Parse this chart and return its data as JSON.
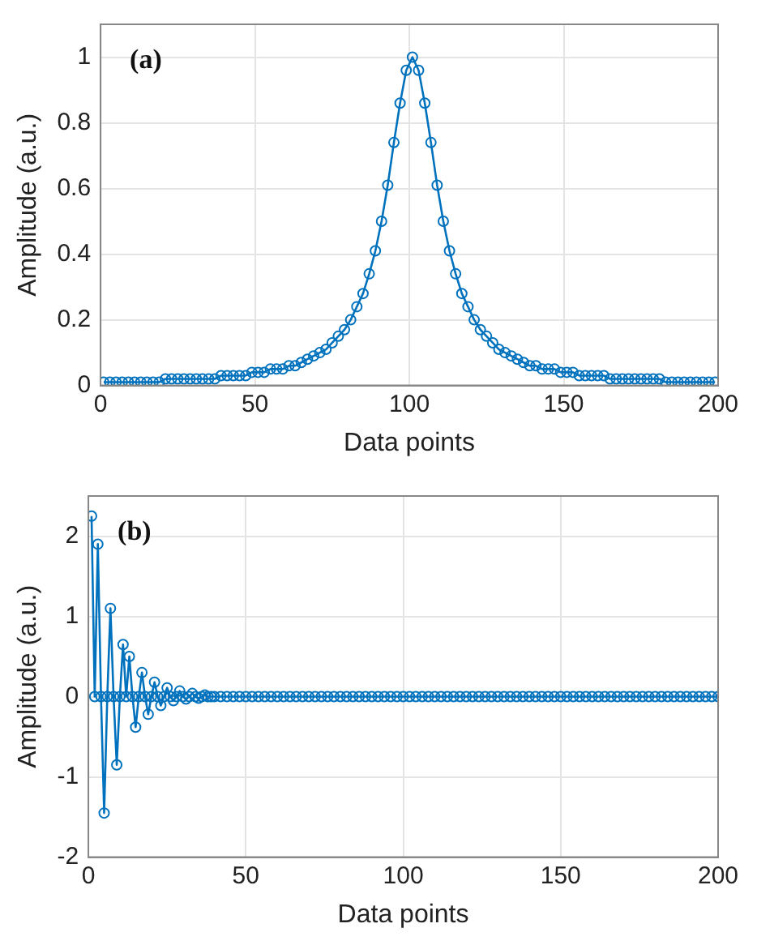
{
  "chart_data": [
    {
      "type": "line",
      "xlabel": "Data points",
      "ylabel": "Amplitude (a.u.)",
      "annotations": [
        "(a)"
      ],
      "xlim": [
        0,
        200
      ],
      "xticks": [
        0,
        50,
        100,
        150,
        200
      ],
      "ylim": [
        0,
        1.1
      ],
      "yticks": [
        0,
        0.2,
        0.4,
        0.6,
        0.8,
        1
      ],
      "grid": true,
      "marker": "circle",
      "line_style": "solid",
      "series": [
        {
          "color": "#0072bd",
          "x": [
            1,
            3,
            5,
            7,
            9,
            11,
            13,
            15,
            17,
            19,
            21,
            23,
            25,
            27,
            29,
            31,
            33,
            35,
            37,
            39,
            41,
            43,
            45,
            47,
            49,
            51,
            53,
            55,
            57,
            59,
            61,
            63,
            65,
            67,
            69,
            71,
            73,
            75,
            77,
            79,
            81,
            83,
            85,
            87,
            89,
            91,
            93,
            95,
            97,
            99,
            101,
            103,
            105,
            107,
            109,
            111,
            113,
            115,
            117,
            119,
            121,
            123,
            125,
            127,
            129,
            131,
            133,
            135,
            137,
            139,
            141,
            143,
            145,
            147,
            149,
            151,
            153,
            155,
            157,
            159,
            161,
            163,
            165,
            167,
            169,
            171,
            173,
            175,
            177,
            179,
            181,
            183,
            185,
            187,
            189,
            191,
            193,
            195,
            197,
            199
          ],
          "values": [
            0.01,
            0.01,
            0.01,
            0.01,
            0.01,
            0.01,
            0.01,
            0.01,
            0.01,
            0.01,
            0.02,
            0.02,
            0.02,
            0.02,
            0.02,
            0.02,
            0.02,
            0.02,
            0.02,
            0.03,
            0.03,
            0.03,
            0.03,
            0.03,
            0.04,
            0.04,
            0.04,
            0.05,
            0.05,
            0.05,
            0.06,
            0.06,
            0.07,
            0.08,
            0.09,
            0.1,
            0.11,
            0.13,
            0.15,
            0.17,
            0.2,
            0.24,
            0.28,
            0.34,
            0.41,
            0.5,
            0.61,
            0.74,
            0.86,
            0.96,
            1,
            0.96,
            0.86,
            0.74,
            0.61,
            0.5,
            0.41,
            0.34,
            0.28,
            0.24,
            0.2,
            0.17,
            0.15,
            0.13,
            0.11,
            0.1,
            0.09,
            0.08,
            0.07,
            0.06,
            0.06,
            0.05,
            0.05,
            0.05,
            0.04,
            0.04,
            0.04,
            0.03,
            0.03,
            0.03,
            0.03,
            0.03,
            0.02,
            0.02,
            0.02,
            0.02,
            0.02,
            0.02,
            0.02,
            0.02,
            0.02,
            0.01,
            0.01,
            0.01,
            0.01,
            0.01,
            0.01,
            0.01,
            0.01,
            0.01
          ]
        }
      ]
    },
    {
      "type": "line",
      "xlabel": "Data points",
      "ylabel": "Amplitude (a.u.)",
      "annotations": [
        "(b)"
      ],
      "xlim": [
        0,
        200
      ],
      "xticks": [
        0,
        50,
        100,
        150,
        200
      ],
      "ylim": [
        -2,
        2.5
      ],
      "yticks": [
        -2,
        -1,
        0,
        1,
        2
      ],
      "grid": true,
      "marker": "circle",
      "line_style": "solid",
      "series": [
        {
          "color": "#0072bd",
          "x": [
            1,
            2,
            3,
            4,
            5,
            6,
            7,
            8,
            9,
            10,
            11,
            12,
            13,
            14,
            15,
            16,
            17,
            18,
            19,
            20,
            21,
            22,
            23,
            24,
            25,
            26,
            27,
            28,
            29,
            30,
            31,
            32,
            33,
            34,
            35,
            36,
            37,
            38,
            39,
            40,
            42,
            44,
            46,
            48,
            50,
            52,
            54,
            56,
            58,
            60,
            62,
            64,
            66,
            68,
            70,
            72,
            74,
            76,
            78,
            80,
            82,
            84,
            86,
            88,
            90,
            92,
            94,
            96,
            98,
            100,
            102,
            104,
            106,
            108,
            110,
            112,
            114,
            116,
            118,
            120,
            122,
            124,
            126,
            128,
            130,
            132,
            134,
            136,
            138,
            140,
            142,
            144,
            146,
            148,
            150,
            152,
            154,
            156,
            158,
            160,
            162,
            164,
            166,
            168,
            170,
            172,
            174,
            176,
            178,
            180,
            182,
            184,
            186,
            188,
            190,
            192,
            194,
            196,
            198,
            200
          ],
          "values": [
            2.25,
            0,
            1.9,
            0,
            -1.45,
            0,
            1.1,
            0,
            -0.85,
            0,
            0.65,
            0,
            0.5,
            0,
            -0.38,
            0,
            0.3,
            0,
            -0.22,
            0,
            0.18,
            0,
            -0.11,
            0,
            0.11,
            0,
            -0.05,
            0,
            0.07,
            0,
            -0.03,
            0,
            0.04,
            0,
            -0.02,
            0,
            0.02,
            0,
            0,
            0,
            0,
            0,
            0,
            0,
            0,
            0,
            0,
            0,
            0,
            0,
            0,
            0,
            0,
            0,
            0,
            0,
            0,
            0,
            0,
            0,
            0,
            0,
            0,
            0,
            0,
            0,
            0,
            0,
            0,
            0,
            0,
            0,
            0,
            0,
            0,
            0,
            0,
            0,
            0,
            0,
            0,
            0,
            0,
            0,
            0,
            0,
            0,
            0,
            0,
            0,
            0,
            0,
            0,
            0,
            0,
            0,
            0,
            0,
            0,
            0,
            0,
            0,
            0,
            0,
            0,
            0,
            0,
            0,
            0,
            0,
            0,
            0,
            0,
            0,
            0,
            0,
            0,
            0,
            0,
            0
          ]
        }
      ]
    }
  ]
}
